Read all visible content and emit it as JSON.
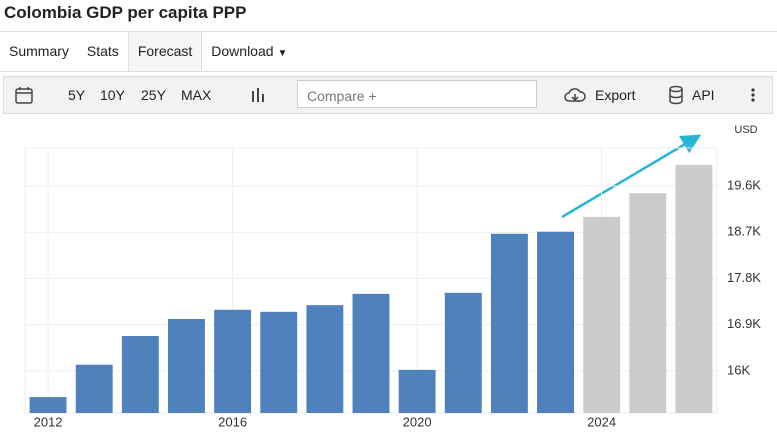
{
  "header": {
    "title": "Colombia GDP per capita PPP"
  },
  "tabs": [
    "Summary",
    "Stats",
    "Forecast",
    "Download"
  ],
  "toolbar": {
    "ranges": [
      "5Y",
      "10Y",
      "25Y",
      "MAX"
    ],
    "compare": "Compare +",
    "export": "Export",
    "api": "API"
  },
  "chart_data": {
    "type": "bar",
    "ylabel": "USD",
    "categories": [
      "2012",
      null,
      null,
      null,
      "2016",
      null,
      null,
      null,
      "2020",
      null,
      null,
      null,
      "2024",
      null,
      null
    ],
    "values": [
      15490,
      16120,
      16680,
      17010,
      17190,
      17150,
      17280,
      17500,
      16020,
      17520,
      18670,
      18710,
      19000,
      19460,
      20010
    ],
    "colors": [
      "#4f81bd",
      "#4f81bd",
      "#4f81bd",
      "#4f81bd",
      "#4f81bd",
      "#4f81bd",
      "#4f81bd",
      "#4f81bd",
      "#4f81bd",
      "#4f81bd",
      "#4f81bd",
      "#4f81bd",
      "#cccccc",
      "#cccccc",
      "#cccccc"
    ],
    "ylim": [
      15180,
      20340
    ],
    "yticks": [
      {
        "value": 16000,
        "label": "16K"
      },
      {
        "value": 16900,
        "label": "16.9K"
      },
      {
        "value": 17800,
        "label": "17.8K"
      },
      {
        "value": 18700,
        "label": "18.7K"
      },
      {
        "value": 19600,
        "label": "19.6K"
      }
    ],
    "grid": true
  }
}
